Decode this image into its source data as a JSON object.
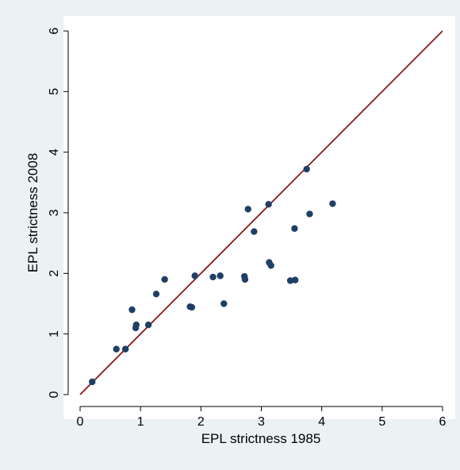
{
  "chart_data": {
    "type": "scatter",
    "title": "",
    "xlabel": "EPL strictness 1985",
    "ylabel": "EPL strictness 2008",
    "xlim": [
      0,
      6
    ],
    "ylim": [
      0,
      6
    ],
    "x_ticks": [
      "0",
      "1",
      "2",
      "3",
      "4",
      "5",
      "6"
    ],
    "y_ticks": [
      "0",
      "1",
      "2",
      "3",
      "4",
      "5",
      "6"
    ],
    "grid": false,
    "legend": "none",
    "reference_line": {
      "type": "45-degree",
      "from": [
        0,
        0
      ],
      "to": [
        6,
        6
      ]
    },
    "colors": {
      "background": "#eaf2f3",
      "plot_area": "#ffffff",
      "marker": "#1f3f66",
      "reference_line": "#8b1a1a"
    },
    "points": [
      {
        "x": 0.2,
        "y": 0.21
      },
      {
        "x": 0.6,
        "y": 0.75
      },
      {
        "x": 0.75,
        "y": 0.75
      },
      {
        "x": 0.86,
        "y": 1.4
      },
      {
        "x": 0.92,
        "y": 1.1
      },
      {
        "x": 0.93,
        "y": 1.15
      },
      {
        "x": 1.13,
        "y": 1.15
      },
      {
        "x": 1.26,
        "y": 1.66
      },
      {
        "x": 1.4,
        "y": 1.9
      },
      {
        "x": 1.82,
        "y": 1.45
      },
      {
        "x": 1.85,
        "y": 1.44
      },
      {
        "x": 1.9,
        "y": 1.96
      },
      {
        "x": 2.2,
        "y": 1.94
      },
      {
        "x": 2.32,
        "y": 1.96
      },
      {
        "x": 2.38,
        "y": 1.5
      },
      {
        "x": 2.72,
        "y": 1.95
      },
      {
        "x": 2.73,
        "y": 1.9
      },
      {
        "x": 2.78,
        "y": 3.06
      },
      {
        "x": 2.88,
        "y": 2.69
      },
      {
        "x": 3.12,
        "y": 3.14
      },
      {
        "x": 3.13,
        "y": 2.18
      },
      {
        "x": 3.16,
        "y": 2.13
      },
      {
        "x": 3.48,
        "y": 1.88
      },
      {
        "x": 3.55,
        "y": 2.74
      },
      {
        "x": 3.56,
        "y": 1.89
      },
      {
        "x": 3.75,
        "y": 3.72
      },
      {
        "x": 3.8,
        "y": 2.98
      },
      {
        "x": 4.18,
        "y": 3.15
      }
    ]
  }
}
